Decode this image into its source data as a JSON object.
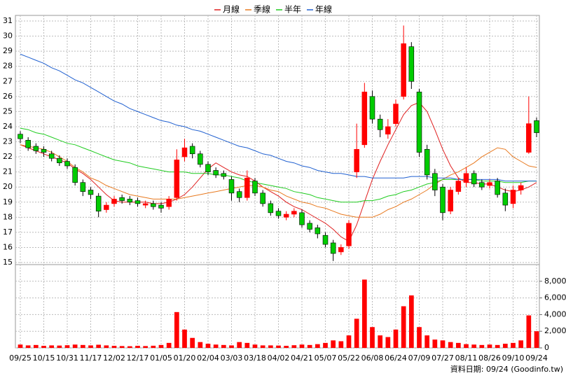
{
  "chart_data": [
    {
      "type": "candlestick",
      "legend": [
        "月線",
        "季線",
        "半年",
        "年線"
      ],
      "categories": [
        "09/25",
        null,
        null,
        "10/15",
        null,
        null,
        "10/31",
        null,
        null,
        "11/17",
        null,
        null,
        "12/02",
        null,
        null,
        "12/17",
        null,
        null,
        "01/05",
        null,
        null,
        "01/20",
        null,
        null,
        "02/04",
        null,
        null,
        "03/03",
        null,
        null,
        "03/18",
        null,
        null,
        "04/02",
        null,
        null,
        "04/21",
        null,
        null,
        "05/07",
        null,
        null,
        "05/22",
        null,
        null,
        "06/08",
        null,
        null,
        "06/24",
        null,
        null,
        "07/09",
        null,
        null,
        "07/27",
        null,
        null,
        "08/11",
        null,
        null,
        "08/26",
        null,
        null,
        "09/10",
        null,
        null,
        "09/24"
      ],
      "open": [
        23.5,
        23.1,
        22.7,
        22.5,
        22.2,
        21.9,
        21.7,
        21.3,
        20.3,
        19.8,
        19.4,
        18.5,
        18.9,
        19.3,
        19.2,
        19.1,
        18.8,
        18.9,
        18.8,
        18.7,
        19.3,
        22.0,
        22.7,
        22.2,
        21.5,
        21.1,
        20.9,
        20.5,
        19.7,
        19.3,
        20.4,
        19.6,
        18.9,
        18.4,
        18.0,
        18.2,
        18.3,
        17.6,
        17.3,
        16.8,
        16.3,
        15.7,
        16.1,
        21.0,
        22.8,
        26.0,
        24.5,
        23.5,
        24.2,
        26.0,
        29.3,
        26.3,
        22.5,
        20.9,
        20.0,
        18.4,
        19.7,
        20.3,
        20.9,
        20.3,
        20.1,
        20.4,
        19.6,
        18.9,
        19.8,
        22.3,
        24.4
      ],
      "high": [
        23.7,
        23.3,
        22.9,
        22.7,
        22.4,
        22.1,
        21.9,
        21.5,
        20.5,
        20.0,
        19.6,
        19.0,
        19.4,
        19.5,
        19.4,
        19.3,
        19.1,
        19.1,
        19.0,
        19.4,
        22.5,
        23.2,
        22.9,
        22.4,
        21.7,
        21.3,
        21.1,
        20.7,
        19.9,
        21.1,
        20.6,
        19.8,
        19.1,
        18.6,
        18.4,
        18.6,
        18.5,
        17.8,
        17.5,
        17.0,
        16.5,
        16.2,
        17.8,
        24.2,
        26.9,
        26.4,
        24.8,
        24.5,
        25.8,
        30.7,
        29.6,
        26.5,
        22.8,
        21.2,
        20.2,
        20.0,
        20.6,
        21.3,
        21.1,
        20.5,
        20.5,
        20.6,
        19.9,
        20.1,
        20.3,
        26.0,
        24.6
      ],
      "low": [
        22.9,
        22.4,
        22.2,
        22.0,
        21.7,
        21.4,
        21.2,
        20.1,
        19.4,
        19.2,
        18.0,
        18.3,
        18.7,
        18.9,
        18.8,
        18.7,
        18.6,
        18.5,
        18.3,
        18.5,
        19.1,
        21.7,
        21.9,
        21.3,
        20.8,
        20.6,
        20.5,
        19.1,
        19.0,
        19.1,
        19.4,
        18.7,
        18.1,
        17.9,
        17.8,
        18.0,
        17.3,
        17.0,
        16.6,
        16.0,
        15.1,
        15.5,
        15.9,
        20.6,
        22.6,
        24.2,
        23.3,
        23.2,
        24.0,
        25.8,
        26.5,
        22.0,
        20.5,
        19.4,
        17.8,
        18.2,
        19.5,
        20.0,
        20.0,
        19.8,
        19.9,
        19.3,
        18.4,
        18.6,
        19.5,
        22.2,
        23.3
      ],
      "close": [
        23.2,
        22.6,
        22.4,
        22.3,
        21.9,
        21.6,
        21.4,
        20.3,
        19.7,
        19.5,
        18.4,
        18.8,
        19.2,
        19.1,
        19.0,
        18.9,
        18.9,
        18.7,
        18.6,
        19.2,
        21.8,
        22.6,
        22.2,
        21.5,
        21.0,
        20.8,
        20.7,
        19.6,
        19.3,
        20.6,
        19.6,
        18.9,
        18.3,
        18.1,
        18.2,
        18.4,
        17.5,
        17.2,
        16.9,
        16.2,
        15.6,
        16.0,
        17.6,
        22.5,
        26.3,
        24.5,
        23.8,
        24.0,
        25.5,
        29.5,
        27.0,
        22.3,
        20.8,
        19.8,
        18.3,
        19.8,
        20.4,
        20.9,
        20.2,
        20.0,
        20.3,
        19.5,
        18.8,
        19.8,
        20.1,
        24.2,
        23.6
      ],
      "up_color": "#ff0000",
      "down_color": "#00cc00",
      "series": [
        {
          "name": "月線",
          "color": "#e02020",
          "values": [
            22.8,
            22.6,
            22.4,
            22.2,
            22.0,
            21.8,
            21.6,
            21.2,
            20.9,
            20.5,
            20.0,
            19.5,
            19.1,
            19.0,
            19.0,
            19.0,
            19.0,
            18.9,
            18.9,
            19.0,
            19.2,
            19.5,
            20.0,
            20.6,
            21.2,
            21.6,
            21.3,
            21.0,
            20.8,
            20.7,
            20.4,
            20.0,
            19.7,
            19.4,
            19.0,
            18.7,
            18.5,
            18.2,
            17.9,
            17.6,
            17.2,
            16.7,
            16.4,
            17.5,
            19.0,
            20.5,
            21.7,
            22.8,
            23.8,
            24.8,
            25.4,
            25.6,
            25.0,
            23.8,
            22.5,
            21.4,
            20.6,
            20.3,
            20.3,
            20.2,
            20.2,
            20.0,
            19.8,
            19.7,
            19.8,
            20.0,
            20.3
          ]
        },
        {
          "name": "季線",
          "color": "#e87a20",
          "values": [
            22.8,
            22.7,
            22.6,
            22.5,
            22.3,
            22.0,
            21.7,
            21.3,
            21.0,
            20.6,
            20.4,
            20.1,
            19.9,
            19.7,
            19.5,
            19.4,
            19.3,
            19.2,
            19.2,
            19.2,
            19.2,
            19.3,
            19.4,
            19.5,
            19.6,
            19.7,
            19.8,
            19.9,
            20.0,
            20.1,
            20.1,
            20.0,
            19.8,
            19.7,
            19.4,
            19.2,
            19.0,
            18.9,
            18.7,
            18.6,
            18.4,
            18.2,
            18.1,
            18.0,
            18.0,
            18.0,
            18.2,
            18.5,
            18.7,
            19.0,
            19.2,
            19.5,
            19.8,
            20.2,
            20.5,
            20.8,
            21.0,
            21.3,
            21.6,
            22.0,
            22.3,
            22.6,
            22.5,
            22.0,
            21.7,
            21.4,
            21.3
          ]
        },
        {
          "name": "半年",
          "color": "#20cc20",
          "values": [
            23.9,
            23.8,
            23.6,
            23.5,
            23.3,
            23.1,
            22.9,
            22.8,
            22.6,
            22.4,
            22.2,
            22.0,
            21.8,
            21.7,
            21.6,
            21.4,
            21.3,
            21.2,
            21.1,
            21.0,
            21.0,
            21.0,
            20.9,
            20.9,
            20.9,
            20.8,
            20.8,
            20.7,
            20.6,
            20.4,
            20.3,
            20.2,
            20.1,
            20.0,
            19.9,
            19.7,
            19.6,
            19.5,
            19.3,
            19.2,
            19.1,
            19.0,
            19.0,
            19.0,
            19.1,
            19.1,
            19.2,
            19.4,
            19.5,
            19.7,
            19.8,
            20.0,
            20.2,
            20.3,
            20.5,
            20.5,
            20.5,
            20.5,
            20.5,
            20.4,
            20.4,
            20.4,
            20.3,
            20.3,
            20.3,
            20.4,
            20.4
          ]
        },
        {
          "name": "年線",
          "color": "#2060d0",
          "values": [
            28.8,
            28.6,
            28.4,
            28.2,
            27.9,
            27.7,
            27.4,
            27.1,
            26.9,
            26.6,
            26.3,
            26.0,
            25.7,
            25.5,
            25.2,
            25.0,
            24.8,
            24.6,
            24.4,
            24.3,
            24.1,
            24.0,
            23.8,
            23.7,
            23.5,
            23.3,
            23.1,
            22.9,
            22.7,
            22.6,
            22.4,
            22.2,
            22.1,
            21.9,
            21.7,
            21.6,
            21.4,
            21.3,
            21.1,
            21.0,
            20.9,
            20.9,
            20.8,
            20.7,
            20.7,
            20.6,
            20.6,
            20.6,
            20.6,
            20.6,
            20.7,
            20.7,
            20.7,
            20.6,
            20.6,
            20.6,
            20.5,
            20.5,
            20.5,
            20.5,
            20.5,
            20.5,
            20.4,
            20.4,
            20.4,
            20.4,
            20.4
          ]
        }
      ],
      "ylim": [
        15,
        31
      ],
      "yticks": [
        15,
        16,
        17,
        18,
        19,
        20,
        21,
        22,
        23,
        24,
        25,
        26,
        27,
        28,
        29,
        30,
        31
      ],
      "grid": true,
      "footer": "資料日期: 09/24 (Goodinfo.tw)"
    },
    {
      "type": "bar",
      "color": "#ff0000",
      "values": [
        400,
        300,
        350,
        250,
        300,
        280,
        320,
        400,
        350,
        300,
        380,
        300,
        250,
        220,
        200,
        250,
        220,
        260,
        350,
        600,
        4300,
        2200,
        1200,
        700,
        500,
        400,
        350,
        300,
        700,
        600,
        400,
        300,
        300,
        280,
        250,
        320,
        400,
        350,
        450,
        600,
        900,
        800,
        1500,
        3500,
        8200,
        2500,
        1500,
        1300,
        2200,
        5000,
        6300,
        2500,
        1500,
        1000,
        900,
        700,
        600,
        450,
        400,
        350,
        400,
        350,
        500,
        600,
        900,
        3900,
        2000
      ],
      "ylim": [
        0,
        10000
      ],
      "yticks": [
        0,
        {
          "value": 2000,
          "label": "2,000"
        },
        {
          "value": 4000,
          "label": "4,000"
        },
        {
          "value": 6000,
          "label": "6,000"
        },
        {
          "value": 8000,
          "label": "8,000"
        }
      ],
      "grid": true
    }
  ]
}
